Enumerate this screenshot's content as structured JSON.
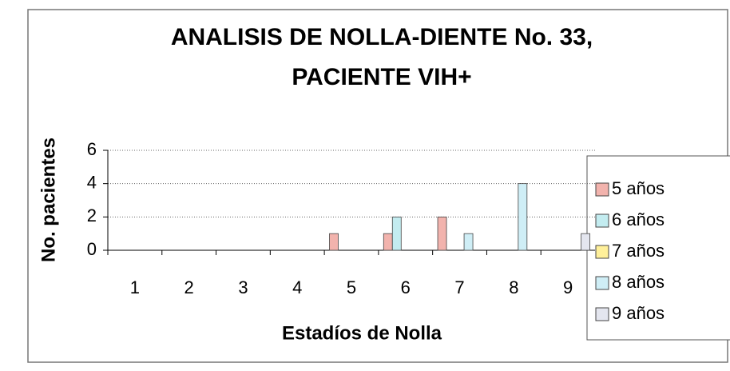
{
  "chart_data": {
    "type": "bar",
    "title": [
      "ANALISIS DE NOLLA-DIENTE No. 33,",
      "PACIENTE VIH+"
    ],
    "x_label": "Estadíos de Nolla",
    "y_label": "No. pacientes",
    "categories": [
      "1",
      "2",
      "3",
      "4",
      "5",
      "6",
      "7",
      "8",
      "9"
    ],
    "series": [
      {
        "name": "5 años",
        "color": "#f2b3ad",
        "values": [
          0,
          0,
          0,
          0,
          1,
          1,
          2,
          0,
          0
        ]
      },
      {
        "name": "6 años",
        "color": "#c3ecf0",
        "values": [
          0,
          0,
          0,
          0,
          0,
          2,
          0,
          0,
          0
        ]
      },
      {
        "name": "7 años",
        "color": "#fff09a",
        "values": [
          0,
          0,
          0,
          0,
          0,
          0,
          0,
          0,
          0
        ]
      },
      {
        "name": "8 años",
        "color": "#cfeef6",
        "values": [
          0,
          0,
          0,
          0,
          0,
          0,
          1,
          4,
          0
        ]
      },
      {
        "name": "9 años",
        "color": "#e4e6ef",
        "values": [
          0,
          0,
          0,
          0,
          0,
          0,
          0,
          0,
          1
        ]
      }
    ],
    "ylim": [
      0,
      6
    ],
    "yticks": [
      0,
      2,
      4,
      6
    ],
    "grid": true,
    "legend": "right"
  }
}
